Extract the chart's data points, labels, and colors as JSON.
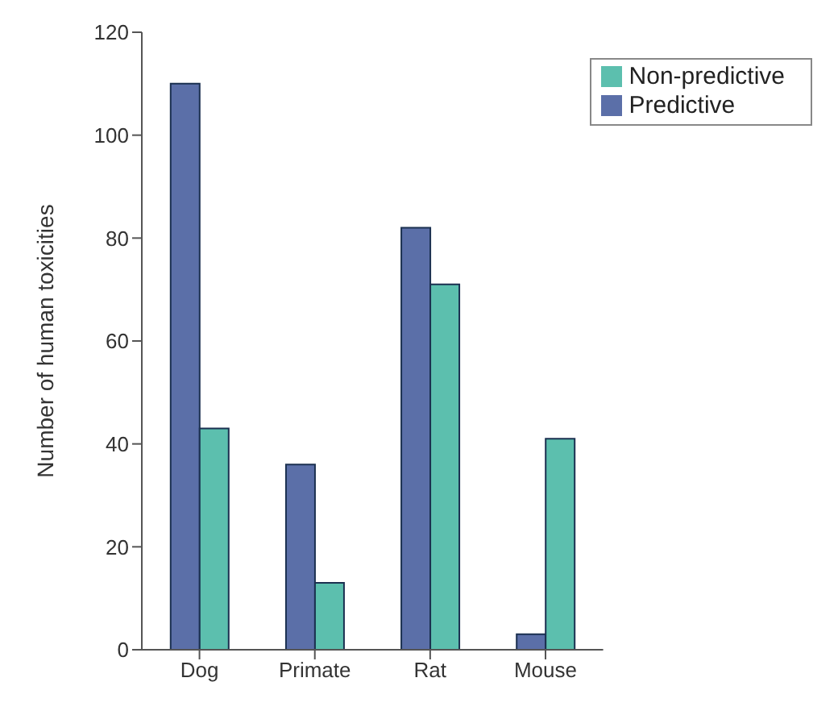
{
  "chart_data": {
    "type": "bar",
    "ylabel": "Number of human toxicities",
    "categories": [
      "Dog",
      "Primate",
      "Rat",
      "Mouse"
    ],
    "series": [
      {
        "name": "Predictive",
        "color": "#5b6fa8",
        "values": [
          110,
          36,
          82,
          3
        ]
      },
      {
        "name": "Non-predictive",
        "color": "#5cbfae",
        "values": [
          43,
          13,
          71,
          41
        ]
      }
    ],
    "ylim": [
      0,
      120
    ],
    "yticks": [
      0,
      20,
      40,
      60,
      80,
      100,
      120
    ],
    "legend": "top right"
  }
}
